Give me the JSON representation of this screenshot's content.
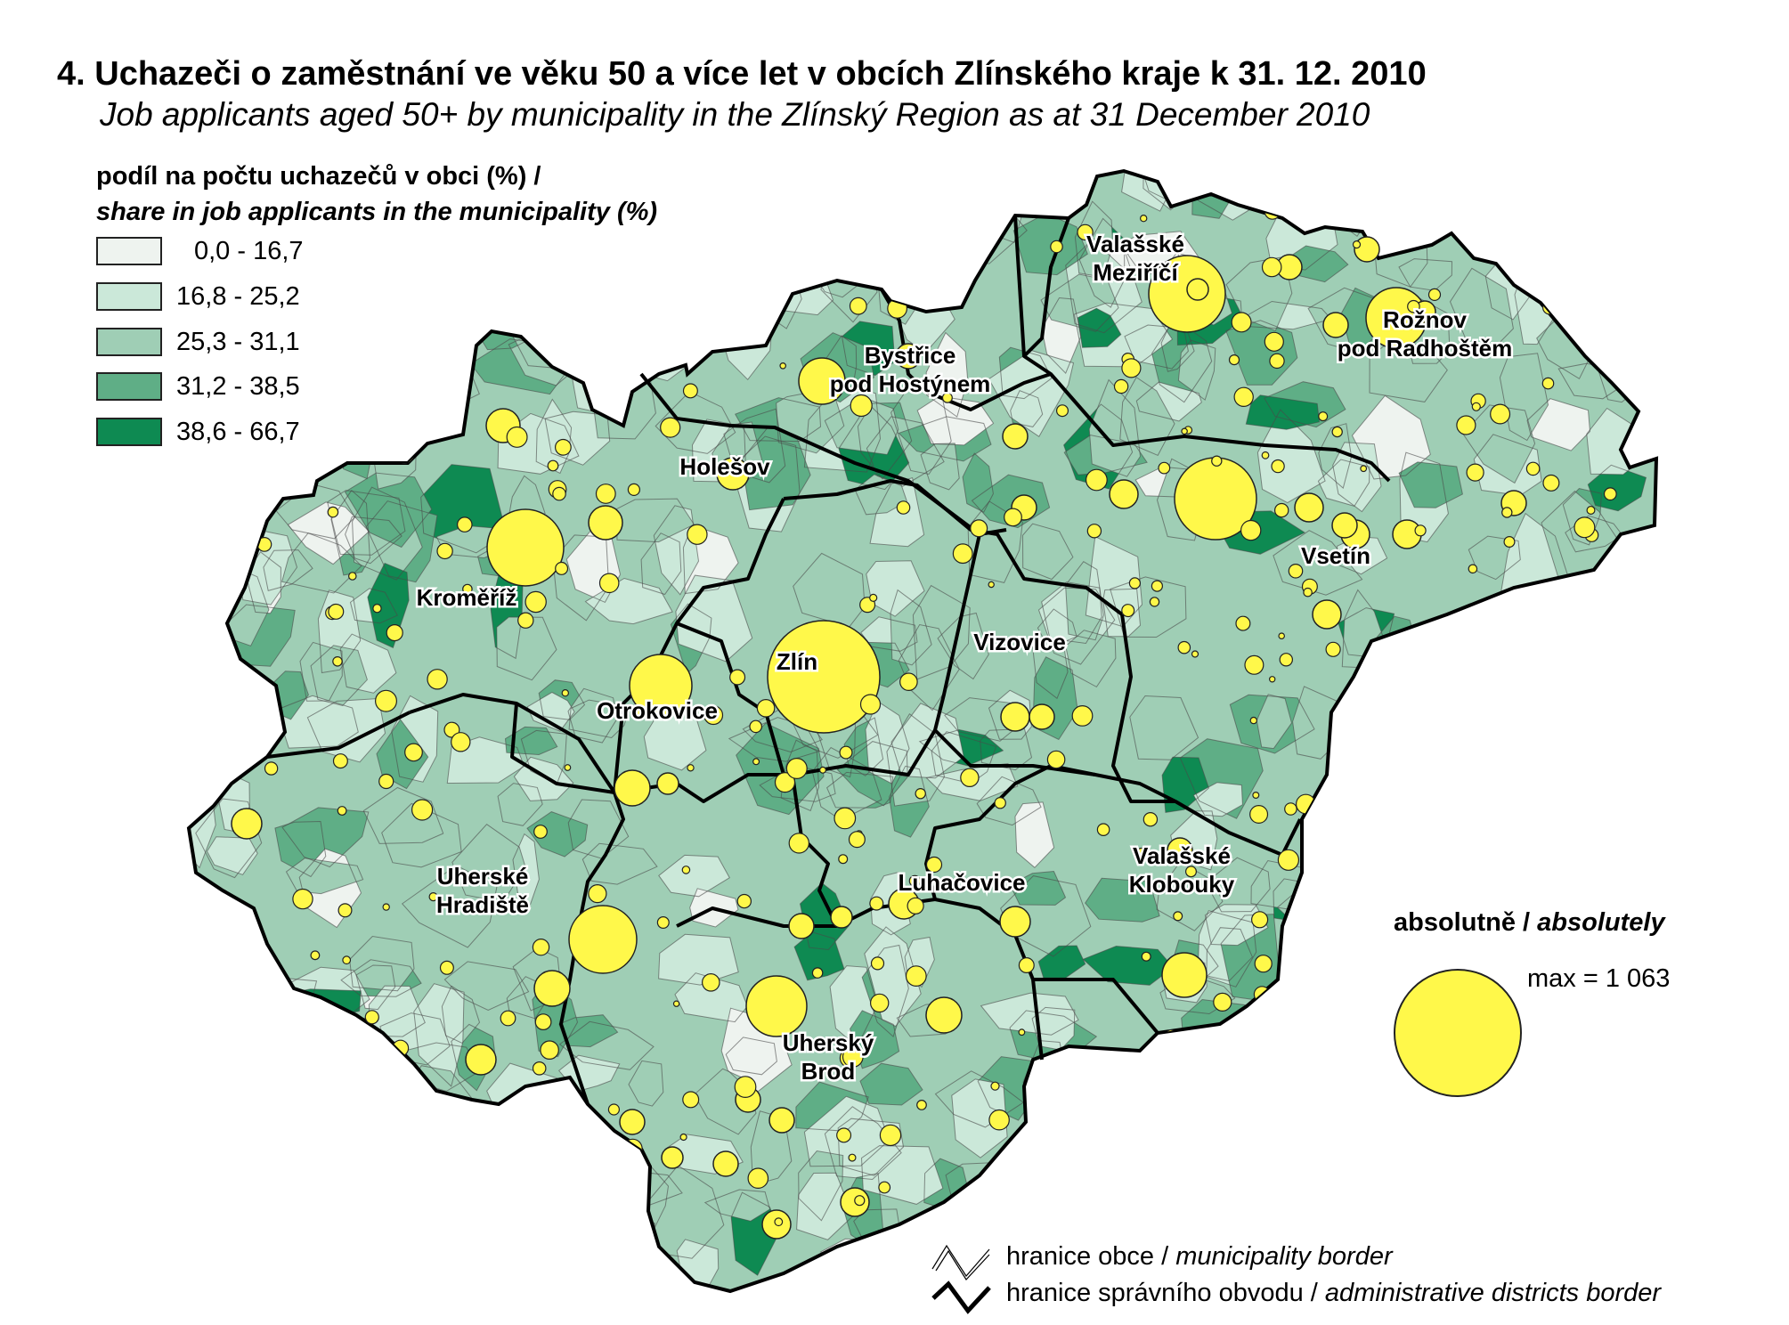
{
  "header": {
    "title": "4. Uchazeči o zaměstnání ve věku 50 a více let v obcích Zlínského kraje k 31. 12. 2010",
    "subtitle": "Job applicants aged 50+ by municipality in the Zlínský Region as at 31 December 2010"
  },
  "legend": {
    "title_cz": "podíl na počtu uchazečů v obci (%) /",
    "title_en": "share in job applicants in the municipality (%)",
    "classes": [
      {
        "label": "0,0 - 16,7",
        "color": "#eef3ef"
      },
      {
        "label": "16,8 - 25,2",
        "color": "#cbe8d9"
      },
      {
        "label": "25,3 - 31,1",
        "color": "#9fceb5"
      },
      {
        "label": "31,2 - 38,5",
        "color": "#5fae86"
      },
      {
        "label": "38,6 - 66,7",
        "color": "#0e8a52"
      }
    ]
  },
  "absolute_legend": {
    "title_cz": "absolutně / ",
    "title_en": "absolutely",
    "max_label": "max = 1 063",
    "circle_color": "#fff84a"
  },
  "border_legend": {
    "municipality": {
      "cz": "hranice obce / ",
      "en": "municipality border"
    },
    "district": {
      "cz": "hranice správního obvodu / ",
      "en": "administrative districts border"
    }
  },
  "map": {
    "towns": [
      {
        "lines": [
          "Valašské",
          "Meziříčí"
        ]
      },
      {
        "lines": [
          "Rožnov",
          "pod Radhoštěm"
        ]
      },
      {
        "lines": [
          "Bystřice",
          "pod Hostýnem"
        ]
      },
      {
        "lines": [
          "Holešov"
        ]
      },
      {
        "lines": [
          "Kroměříž"
        ]
      },
      {
        "lines": [
          "Vsetín"
        ]
      },
      {
        "lines": [
          "Zlín"
        ]
      },
      {
        "lines": [
          "Vizovice"
        ]
      },
      {
        "lines": [
          "Otrokovice"
        ]
      },
      {
        "lines": [
          "Valašské",
          "Klobouky"
        ]
      },
      {
        "lines": [
          "Luhačovice"
        ]
      },
      {
        "lines": [
          "Uherské",
          "Hradiště"
        ]
      },
      {
        "lines": [
          "Uherský",
          "Brod"
        ]
      }
    ]
  }
}
